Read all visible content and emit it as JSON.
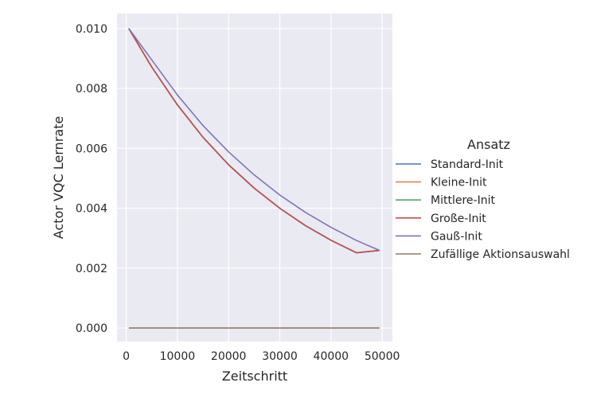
{
  "chart_data": {
    "type": "line",
    "title": "",
    "xlabel": "Zeitschritt",
    "ylabel": "Actor VQC Lernrate",
    "xlim": [
      -1800,
      52000
    ],
    "ylim": [
      -0.00045,
      0.0105
    ],
    "xticks": [
      0,
      10000,
      20000,
      30000,
      40000,
      50000
    ],
    "xtick_labels": [
      "0",
      "10000",
      "20000",
      "30000",
      "40000",
      "50000"
    ],
    "yticks": [
      0.0,
      0.002,
      0.004,
      0.006,
      0.008,
      0.01
    ],
    "ytick_labels": [
      "0.000",
      "0.002",
      "0.004",
      "0.006",
      "0.008",
      "0.010"
    ],
    "grid": true,
    "legend_title": "Ansatz",
    "legend_position": "right",
    "x": [
      500,
      5000,
      10000,
      15000,
      20000,
      25000,
      30000,
      35000,
      40000,
      45000,
      49500
    ],
    "series": [
      {
        "name": "Standard-Init",
        "color": "#4c72b0",
        "values": [
          0.01,
          0.00871,
          0.00745,
          0.00637,
          0.00545,
          0.00467,
          0.004,
          0.00342,
          0.00293,
          0.00251,
          0.00259
        ]
      },
      {
        "name": "Kleine-Init",
        "color": "#dd8452",
        "values": [
          0.01,
          0.00871,
          0.00745,
          0.00637,
          0.00545,
          0.00467,
          0.004,
          0.00342,
          0.00293,
          0.00251,
          0.00259
        ]
      },
      {
        "name": "Mittlere-Init",
        "color": "#55a868",
        "values": [
          0.01,
          0.00871,
          0.00745,
          0.00637,
          0.00545,
          0.00467,
          0.004,
          0.00342,
          0.00293,
          0.00251,
          0.00259
        ]
      },
      {
        "name": "Große-Init",
        "color": "#c44e52",
        "values": [
          0.01,
          0.00871,
          0.00745,
          0.00637,
          0.00545,
          0.00467,
          0.004,
          0.00342,
          0.00293,
          0.00251,
          0.00259
        ]
      },
      {
        "name": "Gauß-Init",
        "color": "#8172b3",
        "values": [
          0.01,
          0.00895,
          0.00778,
          0.00676,
          0.00588,
          0.00511,
          0.00444,
          0.00386,
          0.00336,
          0.00292,
          0.00259
        ]
      },
      {
        "name": "Zufällige Aktionsauswahl",
        "color": "#937860",
        "values": [
          0.0,
          0.0,
          0.0,
          0.0,
          0.0,
          0.0,
          0.0,
          0.0,
          0.0,
          0.0,
          0.0
        ]
      }
    ]
  }
}
